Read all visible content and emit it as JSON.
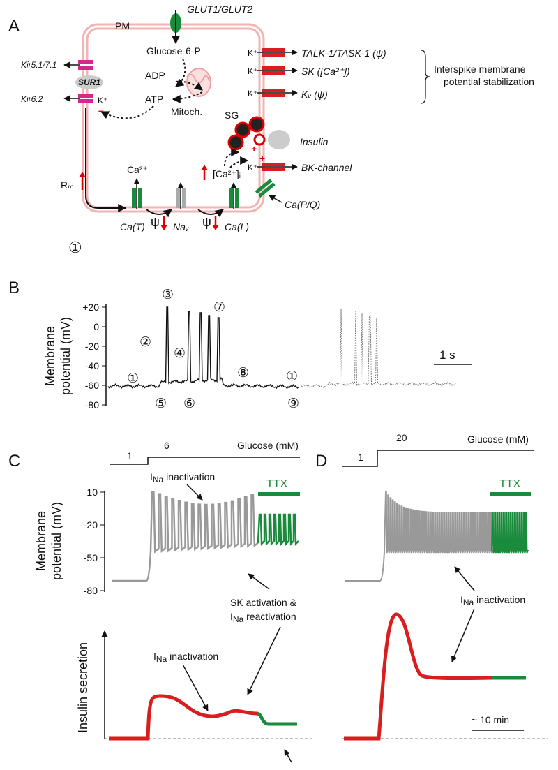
{
  "panel_a": {
    "label": "A",
    "pm": "PM",
    "glut": "GLUT1/GLUT2",
    "glucose6p": "Glucose-6-P",
    "adp": "ADP",
    "atp": "ATP",
    "mitoch": "Mitoch.",
    "k_atp": "K⁺",
    "kir51": "Kir5.1/7.1",
    "sur1": "SUR1",
    "kir62": "Kir6.2",
    "minus": "–",
    "k_talk": "K⁺",
    "talk": "TALK-1/TASK-1 (ψ)",
    "k_sk": "K⁺",
    "sk": "SK ([Ca²⁺])",
    "k_kv": "K⁺",
    "kv": "Kᵥ (ψ)",
    "interspike": [
      "Interspike membrane",
      "potential stabilization"
    ],
    "sg": "SG",
    "insulin": "Insulin",
    "plus1": "+",
    "plus2": "+",
    "k_bk": "K⁺",
    "bk": "BK-channel",
    "cai": "[Ca²⁺]ᵢ",
    "ca": "Ca²⁺",
    "rm": "Rₘ",
    "cat": "Ca(T)",
    "nav": "Naᵥ",
    "cal": "Ca(L)",
    "capq": "Ca(P/Q)",
    "psi1": "ψ",
    "psi2": "ψ",
    "state": "①"
  },
  "panel_b": {
    "label": "B",
    "ylabel": [
      "Membrane",
      "potential (mV)"
    ],
    "yticks": [
      "+20",
      "0",
      "-20",
      "-40",
      "-60",
      "-80"
    ],
    "scale": "1 s",
    "markers": [
      "①",
      "②",
      "③",
      "④",
      "⑤",
      "⑥",
      "⑦",
      "⑧",
      "⑨",
      "①"
    ]
  },
  "panel_c": {
    "label": "C",
    "glucose_low": "1",
    "glucose_high": "6",
    "glucose_label": "Glucose (mM)",
    "ina_top": [
      "I",
      "Na",
      " inactivation"
    ],
    "ttx": "TTX",
    "yticks": [
      "10",
      "-20",
      "-50",
      "-80"
    ],
    "ylabel": [
      "Membrane",
      "potential (mV)"
    ],
    "sk": [
      "SK activation &",
      "I",
      "Na",
      " reactivation"
    ],
    "secretion_label": "Insulin secretion",
    "ina_bottom": [
      "I",
      "Na",
      " inactivation"
    ]
  },
  "panel_d": {
    "label": "D",
    "glucose_low": "1",
    "glucose_high": "20",
    "glucose_label": "Glucose (mM)",
    "ttx": "TTX",
    "ina": [
      "I",
      "Na",
      " inactivation"
    ],
    "scale": "~ 10 min"
  }
}
